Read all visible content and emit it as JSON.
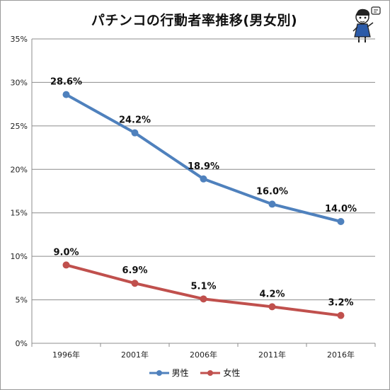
{
  "chart_data": {
    "type": "line",
    "title": "パチンコの行動者率推移(男女別)",
    "xlabel": "",
    "ylabel": "",
    "categories": [
      "1996年",
      "2001年",
      "2006年",
      "2011年",
      "2016年"
    ],
    "ylim": [
      0,
      35
    ],
    "y_ticks": [
      "0%",
      "5%",
      "10%",
      "15%",
      "20%",
      "25%",
      "30%",
      "35%"
    ],
    "grid": true,
    "legend_position": "bottom",
    "series": [
      {
        "name": "男性",
        "color": "#4f81bd",
        "values": [
          28.6,
          24.2,
          18.9,
          16.0,
          14.0
        ],
        "data_labels": [
          "28.6%",
          "24.2%",
          "18.9%",
          "16.0%",
          "14.0%"
        ]
      },
      {
        "name": "女性",
        "color": "#c0504d",
        "values": [
          9.0,
          6.9,
          5.1,
          4.2,
          3.2
        ],
        "data_labels": [
          "9.0%",
          "6.9%",
          "5.1%",
          "4.2%",
          "3.2%"
        ]
      }
    ]
  },
  "mascot_icon": "girl-mascot-icon"
}
